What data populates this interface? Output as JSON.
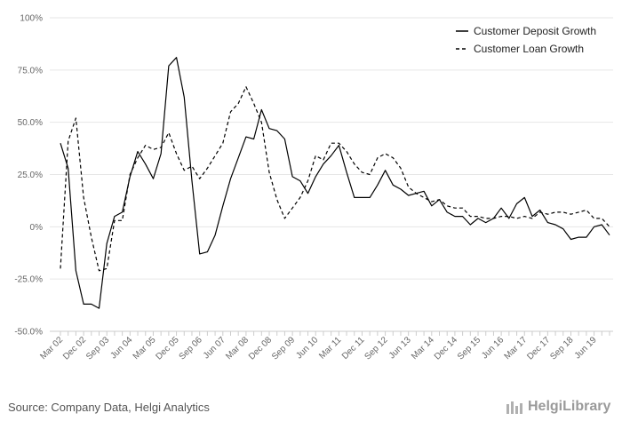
{
  "source_text": "Source: Company Data, Helgi Analytics",
  "logo_text": "HelgiLibrary",
  "colors": {
    "deposit": "#000000",
    "loan": "#000000",
    "grid": "#e6e6e6",
    "axis": "#cccccc"
  },
  "chart_data": {
    "type": "line",
    "title": "",
    "xlabel": "",
    "ylabel": "",
    "ylim": [
      -50,
      100
    ],
    "yticks": [
      100,
      75,
      50,
      25,
      0,
      -25,
      -50
    ],
    "ytick_labels": [
      "100%",
      "75.0%",
      "50.0%",
      "25.0%",
      "0%",
      "-25.0%",
      "-50.0%"
    ],
    "xtick_labels": [
      {
        "label": "Mar 02",
        "index": 0
      },
      {
        "label": "Dec 02",
        "index": 3
      },
      {
        "label": "Sep 03",
        "index": 6
      },
      {
        "label": "Jun 04",
        "index": 9
      },
      {
        "label": "Mar 05",
        "index": 12
      },
      {
        "label": "Dec 05",
        "index": 15
      },
      {
        "label": "Sep 06",
        "index": 18
      },
      {
        "label": "Jun 07",
        "index": 21
      },
      {
        "label": "Mar 08",
        "index": 24
      },
      {
        "label": "Dec 08",
        "index": 27
      },
      {
        "label": "Sep 09",
        "index": 30
      },
      {
        "label": "Jun 10",
        "index": 33
      },
      {
        "label": "Mar 11",
        "index": 36
      },
      {
        "label": "Dec 11",
        "index": 39
      },
      {
        "label": "Sep 12",
        "index": 42
      },
      {
        "label": "Jun 13",
        "index": 45
      },
      {
        "label": "Mar 14",
        "index": 48
      },
      {
        "label": "Dec 14",
        "index": 51
      },
      {
        "label": "Sep 15",
        "index": 54
      },
      {
        "label": "Jun 16",
        "index": 57
      },
      {
        "label": "Mar 17",
        "index": 60
      },
      {
        "label": "Dec 17",
        "index": 63
      },
      {
        "label": "Sep 18",
        "index": 66
      },
      {
        "label": "Jun 19",
        "index": 69
      }
    ],
    "num_periods": 72,
    "legend_position": "top-right",
    "series": [
      {
        "name": "Customer Deposit Growth",
        "style": "solid",
        "values": [
          40,
          28,
          -21,
          -37,
          -37,
          -39,
          -8,
          5,
          7,
          24,
          36,
          30,
          23,
          35,
          77,
          81,
          62,
          22,
          -13,
          -12,
          -4,
          10,
          23,
          33,
          43,
          42,
          56,
          47,
          46,
          42,
          24,
          22,
          16,
          24,
          30,
          34,
          39,
          26,
          14,
          14,
          14,
          20,
          27,
          20,
          18,
          15,
          16,
          17,
          10,
          13,
          7,
          5,
          5,
          1,
          4,
          2,
          4,
          9,
          4,
          11,
          14,
          5,
          8,
          2,
          1,
          -1,
          -6,
          -5,
          -5,
          0,
          1,
          -4
        ]
      },
      {
        "name": "Customer Loan Growth",
        "style": "dashed",
        "values": [
          -20,
          41,
          52,
          14,
          -5,
          -21,
          -20,
          3,
          3,
          25,
          33,
          39,
          37,
          38,
          45,
          35,
          27,
          29,
          23,
          28,
          34,
          40,
          55,
          59,
          67,
          59,
          50,
          26,
          13,
          4,
          9,
          14,
          22,
          34,
          32,
          40,
          40,
          36,
          30,
          26,
          25,
          33,
          35,
          33,
          28,
          19,
          16,
          14,
          12,
          13,
          10,
          9,
          9,
          5,
          5,
          4,
          4,
          5,
          5,
          4,
          5,
          4,
          7,
          6,
          7,
          7,
          6,
          7,
          8,
          4,
          4,
          0
        ]
      }
    ]
  }
}
